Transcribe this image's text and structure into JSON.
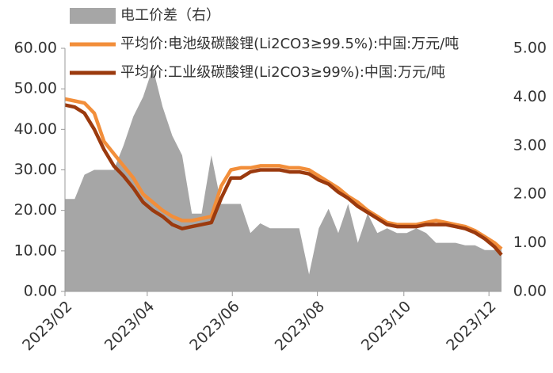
{
  "chart_data": {
    "type": "line",
    "x": [
      0,
      7,
      14,
      21,
      28,
      35,
      42,
      49,
      56,
      63,
      70,
      77,
      84,
      91,
      98,
      105,
      112,
      119,
      126,
      133,
      140,
      147,
      154,
      161,
      168,
      175,
      182,
      189,
      196,
      203,
      210,
      217,
      224,
      231,
      238,
      245,
      252,
      259,
      266,
      273,
      280,
      287,
      294,
      301,
      308,
      313
    ],
    "xlim": [
      0,
      313
    ],
    "xticks": [
      {
        "value": 0,
        "label": "2023/02"
      },
      {
        "value": 59,
        "label": "2023/04"
      },
      {
        "value": 120,
        "label": "2023/06"
      },
      {
        "value": 181,
        "label": "2023/08"
      },
      {
        "value": 243,
        "label": "2023/10"
      },
      {
        "value": 304,
        "label": "2023/12"
      }
    ],
    "ylim": [
      0,
      60
    ],
    "yticks": [
      {
        "value": 0,
        "label": "0.00"
      },
      {
        "value": 10,
        "label": "10.00"
      },
      {
        "value": 20,
        "label": "20.00"
      },
      {
        "value": 30,
        "label": "30.00"
      },
      {
        "value": 40,
        "label": "40.00"
      },
      {
        "value": 50,
        "label": "50.00"
      },
      {
        "value": 60,
        "label": "60.00"
      }
    ],
    "y2lim": [
      0,
      5
    ],
    "y2ticks": [
      {
        "value": 0,
        "label": "0.00"
      },
      {
        "value": 1,
        "label": "1.00"
      },
      {
        "value": 2,
        "label": "2.00"
      },
      {
        "value": 3,
        "label": "3.00"
      },
      {
        "value": 4,
        "label": "4.00"
      },
      {
        "value": 5,
        "label": "5.00"
      }
    ],
    "series": [
      {
        "name": "电工价差（右）",
        "color": "#a6a6a6",
        "kind": "area",
        "axis": "y2",
        "values": [
          1.9,
          1.9,
          2.4,
          2.5,
          2.5,
          2.5,
          3.0,
          3.6,
          4.0,
          4.6,
          3.8,
          3.2,
          2.8,
          1.6,
          1.6,
          2.8,
          1.8,
          1.8,
          1.8,
          1.2,
          1.4,
          1.3,
          1.3,
          1.3,
          1.3,
          0.35,
          1.3,
          1.7,
          1.2,
          1.8,
          1.0,
          1.6,
          1.2,
          1.3,
          1.2,
          1.2,
          1.3,
          1.2,
          1.0,
          1.0,
          1.0,
          0.95,
          0.95,
          0.85,
          0.85,
          0.9
        ]
      },
      {
        "name": "平均价:电池级碳酸锂(Li2CO3≥99.5%):中国:万元/吨",
        "color": "#f28e3a",
        "values": [
          47.5,
          47,
          46.5,
          44,
          37,
          34,
          31,
          28,
          24,
          22,
          20,
          18.5,
          17.5,
          17.5,
          18,
          18.5,
          26,
          30,
          30.5,
          30.5,
          31,
          31,
          31,
          30.5,
          30.5,
          30,
          28.5,
          27,
          25.5,
          23.5,
          22,
          20,
          18.5,
          17,
          16.5,
          16.5,
          16.5,
          17,
          17.5,
          17,
          16.5,
          16,
          15,
          13.5,
          12,
          10.5
        ]
      },
      {
        "name": "平均价:工业级碳酸锂(Li2CO3≥99%):中国:万元/吨",
        "color": "#9b3a0e",
        "values": [
          46,
          45.5,
          44,
          40,
          35,
          31,
          28.5,
          25.5,
          22,
          20,
          18.5,
          16.5,
          15.5,
          16,
          16.5,
          17,
          23,
          28,
          28,
          29.5,
          30,
          30,
          30,
          29.5,
          29.5,
          29,
          27.5,
          26.5,
          24.5,
          23,
          21,
          19.5,
          18,
          16.5,
          16,
          16,
          16,
          16.5,
          16.5,
          16.5,
          16,
          15.5,
          14.5,
          13,
          11,
          9
        ]
      }
    ]
  }
}
